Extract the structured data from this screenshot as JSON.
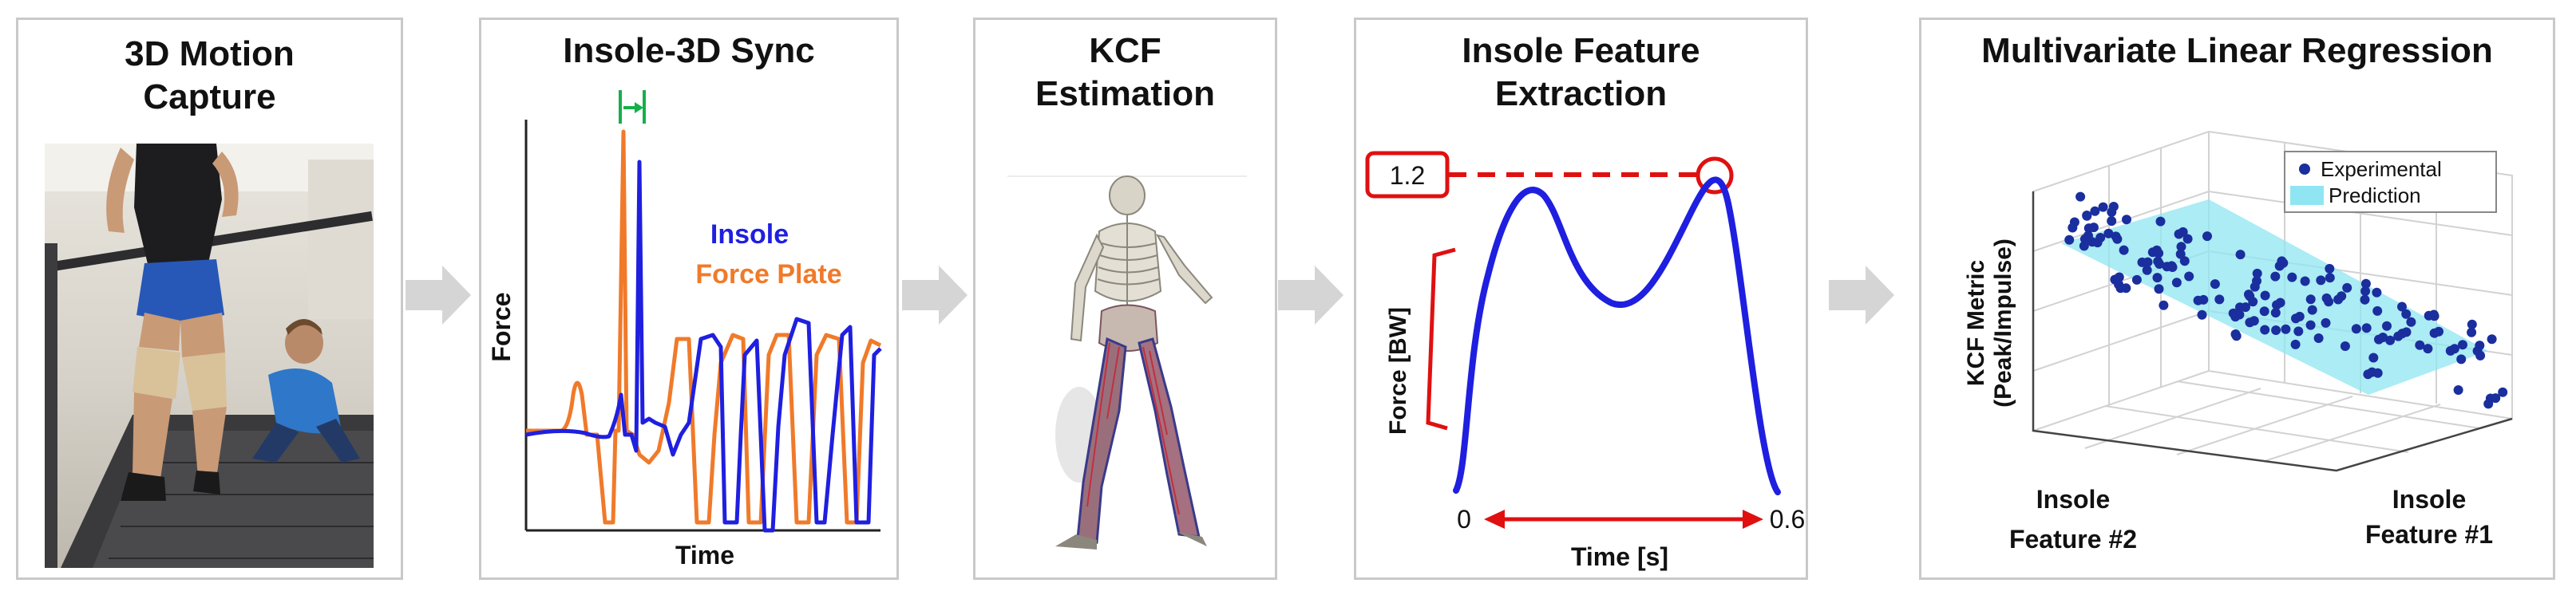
{
  "panels": {
    "p1": {
      "title_line1": "3D Motion",
      "title_line2": "Capture"
    },
    "p2": {
      "title": "Insole-3D Sync",
      "ylabel": "Force",
      "xlabel": "Time",
      "legend_insole": "Insole",
      "legend_plate": "Force Plate"
    },
    "p3": {
      "title_line1": "KCF",
      "title_line2": "Estimation"
    },
    "p4": {
      "title_line1": "Insole Feature",
      "title_line2": "Extraction",
      "ylabel": "Force [BW]",
      "xlabel": "Time [s]",
      "x_start": "0",
      "x_end": "0.6",
      "peak_value": "1.2"
    },
    "p5": {
      "title": "Multivariate Linear Regression",
      "zlabel_line1": "KCF Metric",
      "zlabel_line2": "(Peak/Impulse)",
      "xaxis_line1": "Insole",
      "xaxis_line2": "Feature #2",
      "yaxis_line1": "Insole",
      "yaxis_line2": "Feature #1",
      "legend_experimental": "Experimental",
      "legend_prediction": "Prediction"
    }
  },
  "colors": {
    "insole": "#1f1fe0",
    "force_plate": "#f07a2a",
    "annotation": "#e01010",
    "scatter": "#1a2e9e",
    "plane": "#8fe6f2"
  },
  "chart_data": [
    {
      "type": "line",
      "panel": "Insole-3D Sync",
      "xlabel": "Time",
      "ylabel": "Force",
      "series": [
        {
          "name": "Insole"
        },
        {
          "name": "Force Plate"
        }
      ]
    },
    {
      "type": "line",
      "panel": "Insole Feature Extraction",
      "xlabel": "Time [s]",
      "ylabel": "Force [BW]",
      "x_range": [
        0,
        0.6
      ],
      "annotated_peak": 1.2
    },
    {
      "type": "scatter",
      "panel": "Multivariate Linear Regression",
      "series": [
        {
          "name": "Experimental"
        },
        {
          "name": "Prediction"
        }
      ]
    }
  ]
}
